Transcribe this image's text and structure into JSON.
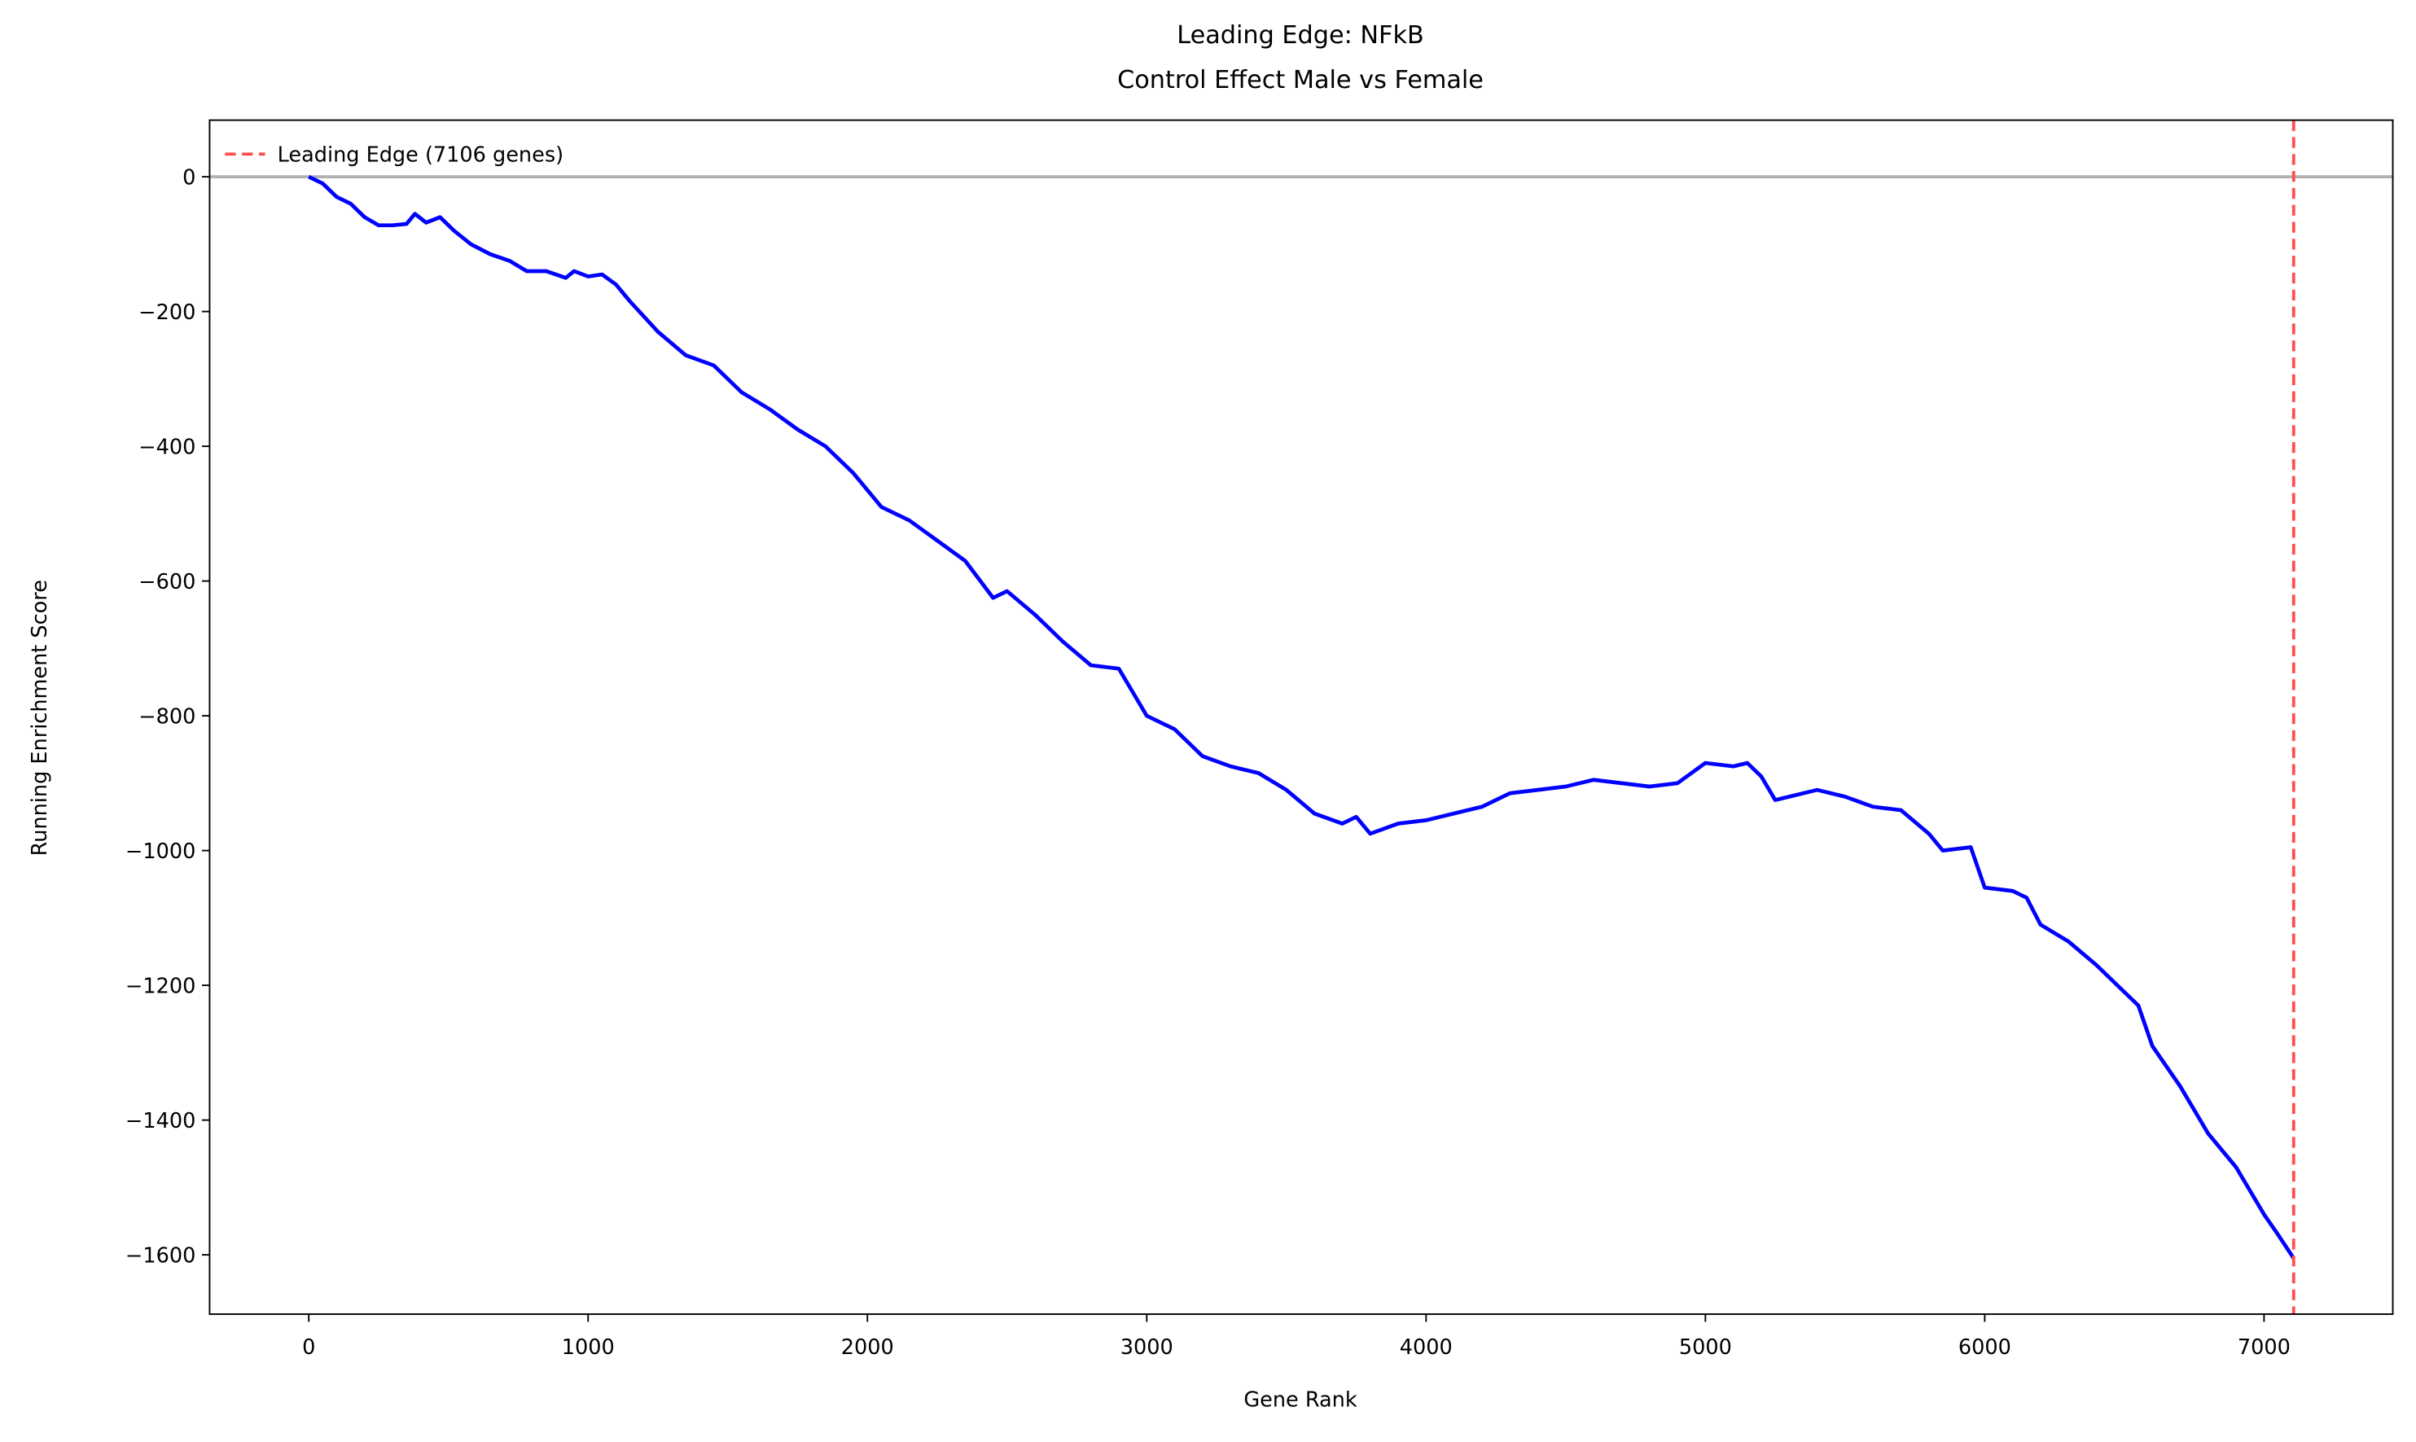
{
  "chart_data": {
    "type": "line",
    "title": "Leading Edge: NFkB",
    "subtitle": "Control Effect Male vs Female",
    "x_label": "Gene Rank",
    "y_label": "Running Enrichment Score",
    "x": [
      0,
      50,
      100,
      150,
      200,
      250,
      300,
      350,
      380,
      420,
      470,
      520,
      580,
      650,
      720,
      780,
      850,
      920,
      950,
      1000,
      1050,
      1100,
      1150,
      1250,
      1350,
      1450,
      1550,
      1650,
      1750,
      1850,
      1950,
      2050,
      2150,
      2250,
      2350,
      2450,
      2500,
      2600,
      2700,
      2800,
      2900,
      3000,
      3100,
      3200,
      3300,
      3400,
      3500,
      3600,
      3700,
      3750,
      3800,
      3900,
      4000,
      4050,
      4100,
      4200,
      4300,
      4400,
      4500,
      4600,
      4700,
      4800,
      4900,
      5000,
      5100,
      5150,
      5200,
      5250,
      5300,
      5400,
      5500,
      5600,
      5700,
      5800,
      5850,
      5950,
      6000,
      6100,
      6150,
      6200,
      6300,
      6400,
      6500,
      6550,
      6600,
      6700,
      6800,
      6900,
      7000,
      7050,
      7106
    ],
    "series": [
      {
        "name": "Running Enrichment Score",
        "color": "#0000ff",
        "values": [
          0,
          -10,
          -30,
          -40,
          -60,
          -72,
          -72,
          -70,
          -55,
          -68,
          -60,
          -80,
          -100,
          -115,
          -125,
          -140,
          -140,
          -150,
          -140,
          -148,
          -145,
          -160,
          -185,
          -230,
          -265,
          -280,
          -320,
          -345,
          -375,
          -400,
          -440,
          -490,
          -510,
          -540,
          -570,
          -625,
          -615,
          -650,
          -690,
          -725,
          -730,
          -800,
          -820,
          -860,
          -875,
          -885,
          -910,
          -945,
          -960,
          -950,
          -975,
          -960,
          -955,
          -950,
          -945,
          -935,
          -915,
          -910,
          -905,
          -895,
          -900,
          -905,
          -900,
          -870,
          -875,
          -870,
          -890,
          -925,
          -920,
          -910,
          -920,
          -935,
          -940,
          -975,
          -1000,
          -995,
          -1055,
          -1060,
          -1070,
          -1110,
          -1135,
          -1170,
          -1210,
          -1230,
          -1290,
          -1350,
          -1420,
          -1470,
          -1540,
          -1570,
          -1605
        ]
      }
    ],
    "leading_edge": {
      "name": "Leading Edge (7106 genes)",
      "value": 7106,
      "color": "#ff4d4d"
    },
    "reference_line": 0,
    "xlim": [
      -355,
      7461
    ],
    "ylim": [
      -1688,
      84
    ],
    "xticks": [
      0,
      1000,
      2000,
      3000,
      4000,
      5000,
      6000,
      7000
    ],
    "yticks": [
      {
        "value": -1600,
        "label": "−1600"
      },
      {
        "value": -1400,
        "label": "−1400"
      },
      {
        "value": -1200,
        "label": "−1200"
      },
      {
        "value": -1000,
        "label": "−1000"
      },
      {
        "value": -800,
        "label": "−800"
      },
      {
        "value": -600,
        "label": "−600"
      },
      {
        "value": -400,
        "label": "−400"
      },
      {
        "value": -200,
        "label": "−200"
      },
      0
    ],
    "legend": "upper left"
  }
}
